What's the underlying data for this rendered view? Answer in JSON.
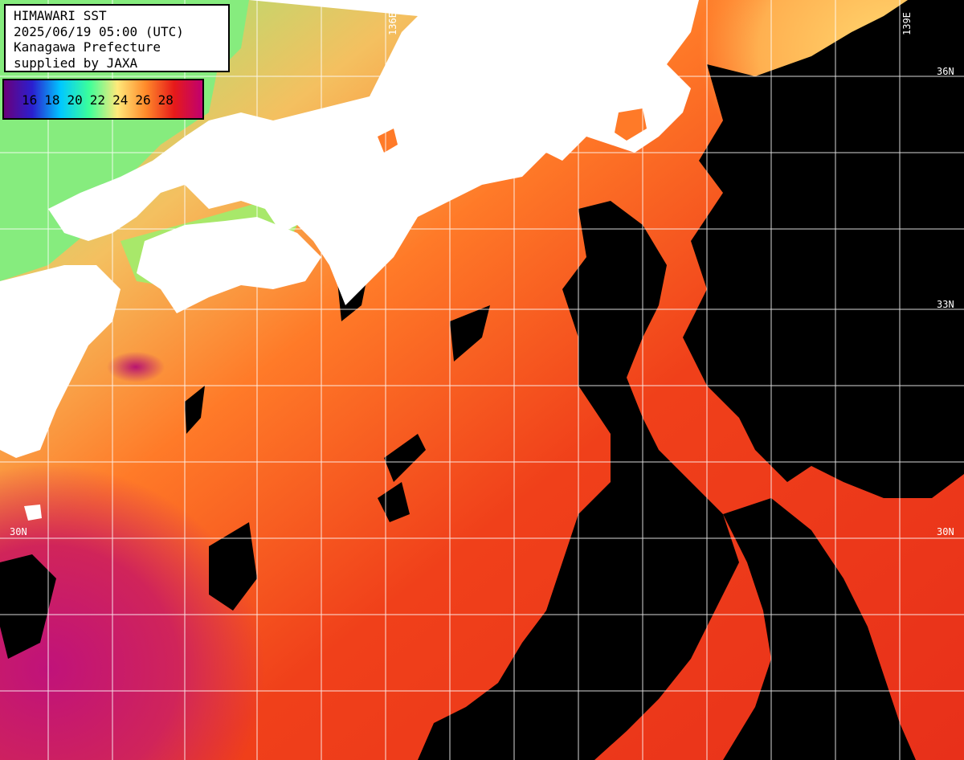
{
  "info": {
    "title": "HIMAWARI SST",
    "datetime": "2025/06/19 05:00 (UTC)",
    "region": "Kanagawa Prefecture",
    "credit": "supplied by JAXA"
  },
  "legend": {
    "ticks": [
      "16",
      "18",
      "20",
      "22",
      "24",
      "26",
      "28"
    ],
    "colors": [
      "#6a007a",
      "#2a1fd0",
      "#00c8ff",
      "#3cff9a",
      "#ffe97a",
      "#ff8a2a",
      "#e61a1a",
      "#c00070"
    ]
  },
  "grid_labels": {
    "lon_top": "136E",
    "lon_top_right": "139E",
    "lat_36": "36N",
    "lat_33": "33N",
    "lat_30_left": "30N",
    "lat_30_right": "30N"
  },
  "colors": {
    "land": "#ffffff",
    "cloud": "#000000",
    "grid": "#ffffff",
    "cold_water": "#7ef08a",
    "warm_water": "#ff5a14",
    "hot_water": "#c0127a"
  }
}
